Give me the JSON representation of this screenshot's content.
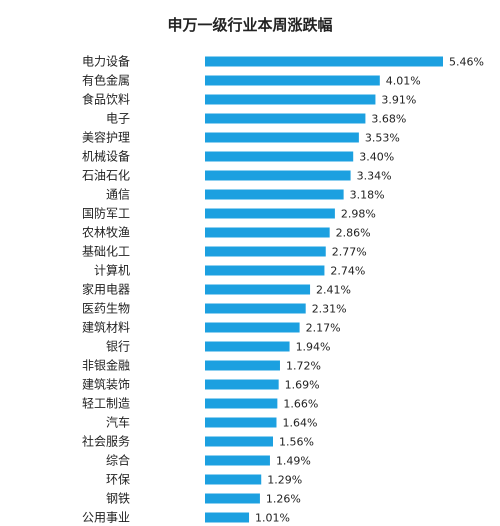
{
  "chart_data": {
    "type": "bar",
    "orientation": "horizontal",
    "title": "申万一级行业本周涨跌幅",
    "bar_color": "#1ca0e0",
    "xlim": [
      0,
      6
    ],
    "categories": [
      "电力设备",
      "有色金属",
      "食品饮料",
      "电子",
      "美容护理",
      "机械设备",
      "石油石化",
      "通信",
      "国防军工",
      "农林牧渔",
      "基础化工",
      "计算机",
      "家用电器",
      "医药生物",
      "建筑材料",
      "银行",
      "非银金融",
      "建筑装饰",
      "轻工制造",
      "汽车",
      "社会服务",
      "综合",
      "环保",
      "钢铁",
      "公用事业"
    ],
    "values": [
      5.46,
      4.01,
      3.91,
      3.68,
      3.53,
      3.4,
      3.34,
      3.18,
      2.98,
      2.86,
      2.77,
      2.74,
      2.41,
      2.31,
      2.17,
      1.94,
      1.72,
      1.69,
      1.66,
      1.64,
      1.56,
      1.49,
      1.29,
      1.26,
      1.01
    ],
    "value_labels": [
      "5.46%",
      "4.01%",
      "3.91%",
      "3.68%",
      "3.53%",
      "3.40%",
      "3.34%",
      "3.18%",
      "2.98%",
      "2.86%",
      "2.77%",
      "2.74%",
      "2.41%",
      "2.31%",
      "2.17%",
      "1.94%",
      "1.72%",
      "1.69%",
      "1.66%",
      "1.64%",
      "1.56%",
      "1.49%",
      "1.29%",
      "1.26%",
      "1.01%"
    ]
  }
}
